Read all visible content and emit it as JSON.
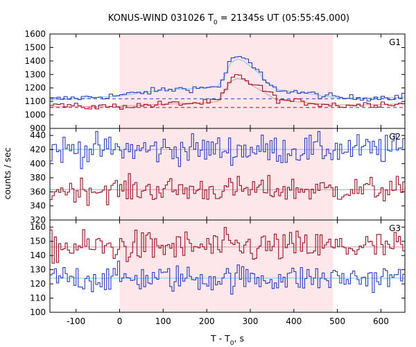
{
  "chart_data": {
    "type": "line",
    "title_main": "KONUS-WIND 031026 T",
    "title_sub": "0",
    "title_rest": " = 21345s UT (05:55:45.000)",
    "xlabel_main": "T - T",
    "xlabel_sub": "0",
    "xlabel_rest": ", s",
    "ylabel": "counts / sec",
    "xlim": [
      -160,
      655
    ],
    "xticks": [
      -100,
      0,
      100,
      200,
      300,
      400,
      500,
      600
    ],
    "highlight_interval": [
      0,
      490
    ],
    "colors": {
      "blue": "#2a3bbf",
      "red": "#9b1020",
      "fit_light": "#8fd3ea",
      "fit_pink": "#f0a0b8",
      "shade": "#fde7ea"
    },
    "panels": [
      {
        "label": "G1",
        "ylim": [
          900,
          1600
        ],
        "yticks": [
          900,
          1000,
          1100,
          1200,
          1300,
          1400,
          1500,
          1600
        ],
        "series": [
          {
            "color_key": "blue",
            "bin": 8,
            "background": 1120,
            "points": [
              [
                -160,
                1115
              ],
              [
                -100,
                1125
              ],
              [
                -50,
                1135
              ],
              [
                0,
                1145
              ],
              [
                50,
                1165
              ],
              [
                100,
                1185
              ],
              [
                150,
                1195
              ],
              [
                200,
                1200
              ],
              [
                230,
                1220
              ],
              [
                240,
                1280
              ],
              [
                250,
                1370
              ],
              [
                262,
                1430
              ],
              [
                275,
                1440
              ],
              [
                290,
                1400
              ],
              [
                305,
                1360
              ],
              [
                320,
                1320
              ],
              [
                335,
                1250
              ],
              [
                350,
                1200
              ],
              [
                380,
                1180
              ],
              [
                420,
                1165
              ],
              [
                470,
                1140
              ],
              [
                520,
                1125
              ],
              [
                600,
                1130
              ],
              [
                655,
                1140
              ]
            ],
            "fit": [
              [
                -160,
                1110
              ],
              [
                0,
                1140
              ],
              [
                100,
                1185
              ],
              [
                200,
                1200
              ],
              [
                225,
                1210
              ],
              [
                240,
                1280
              ],
              [
                255,
                1385
              ],
              [
                270,
                1415
              ],
              [
                285,
                1400
              ],
              [
                300,
                1360
              ],
              [
                320,
                1310
              ],
              [
                340,
                1230
              ],
              [
                360,
                1190
              ],
              [
                400,
                1170
              ],
              [
                450,
                1150
              ],
              [
                500,
                1125
              ],
              [
                560,
                1125
              ],
              [
                655,
                1130
              ]
            ]
          },
          {
            "color_key": "red",
            "bin": 8,
            "background": 1055,
            "points": [
              [
                -160,
                1085
              ],
              [
                -100,
                1060
              ],
              [
                -50,
                1060
              ],
              [
                0,
                1065
              ],
              [
                50,
                1070
              ],
              [
                100,
                1080
              ],
              [
                150,
                1085
              ],
              [
                200,
                1090
              ],
              [
                230,
                1110
              ],
              [
                245,
                1190
              ],
              [
                258,
                1270
              ],
              [
                270,
                1290
              ],
              [
                285,
                1270
              ],
              [
                300,
                1240
              ],
              [
                320,
                1210
              ],
              [
                340,
                1170
              ],
              [
                360,
                1120
              ],
              [
                380,
                1105
              ],
              [
                420,
                1095
              ],
              [
                470,
                1080
              ],
              [
                520,
                1070
              ],
              [
                600,
                1085
              ],
              [
                655,
                1080
              ]
            ],
            "fit": [
              [
                -160,
                1060
              ],
              [
                0,
                1065
              ],
              [
                100,
                1080
              ],
              [
                200,
                1090
              ],
              [
                225,
                1100
              ],
              [
                240,
                1170
              ],
              [
                255,
                1250
              ],
              [
                270,
                1270
              ],
              [
                285,
                1260
              ],
              [
                300,
                1225
              ],
              [
                320,
                1190
              ],
              [
                340,
                1150
              ],
              [
                360,
                1110
              ],
              [
                400,
                1100
              ],
              [
                450,
                1085
              ],
              [
                500,
                1075
              ],
              [
                560,
                1075
              ],
              [
                655,
                1080
              ]
            ]
          }
        ]
      },
      {
        "label": "G2",
        "ylim": [
          320,
          450
        ],
        "yticks": [
          320,
          340,
          360,
          380,
          400,
          420,
          440
        ],
        "series": [
          {
            "color_key": "blue",
            "bin": 5,
            "mean": 420,
            "noise": 13
          },
          {
            "color_key": "red",
            "bin": 5,
            "mean": 363,
            "noise": 11
          }
        ]
      },
      {
        "label": "G3",
        "ylim": [
          100,
          165
        ],
        "yticks": [
          100,
          110,
          120,
          130,
          140,
          150,
          160
        ],
        "series": [
          {
            "color_key": "red",
            "bin": 5,
            "mean": 146,
            "noise": 7
          },
          {
            "color_key": "blue",
            "bin": 5,
            "mean": 124,
            "noise": 6
          }
        ]
      }
    ]
  }
}
